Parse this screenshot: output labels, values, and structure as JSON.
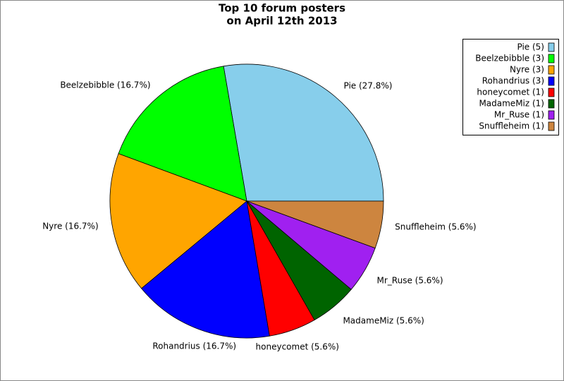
{
  "chart_data": {
    "type": "pie",
    "title": [
      "Top 10 forum posters",
      "on April 12th 2013"
    ],
    "categories": [
      "Pie",
      "Beelzebibble",
      "Nyre",
      "Rohandrius",
      "honeycomet",
      "MadameMiz",
      "Mr_Ruse",
      "Snuffleheim"
    ],
    "values": [
      27.8,
      16.7,
      16.7,
      16.7,
      5.6,
      5.6,
      5.6,
      5.6
    ],
    "value_labels": [
      "Pie (27.8%)",
      "Beelzebibble (16.7%)",
      "Nyre (16.7%)",
      "Rohandrius (16.7%)",
      "honeycomet (5.6%)",
      "MadameMiz (5.6%)",
      "Mr_Ruse (5.6%)",
      "Snuffleheim (5.6%)"
    ],
    "legend_labels": [
      "Pie (5)",
      "Beelzebibble (3)",
      "Nyre (3)",
      "Rohandrius (3)",
      "honeycomet (1)",
      "MadameMiz (1)",
      "Mr_Ruse (1)",
      "Snuffleheim (1)"
    ],
    "colors": [
      "#87ceeb",
      "#00ff00",
      "#ffa500",
      "#0000ff",
      "#ff0000",
      "#006400",
      "#a020f0",
      "#cd853f"
    ],
    "legend": "upper right"
  }
}
